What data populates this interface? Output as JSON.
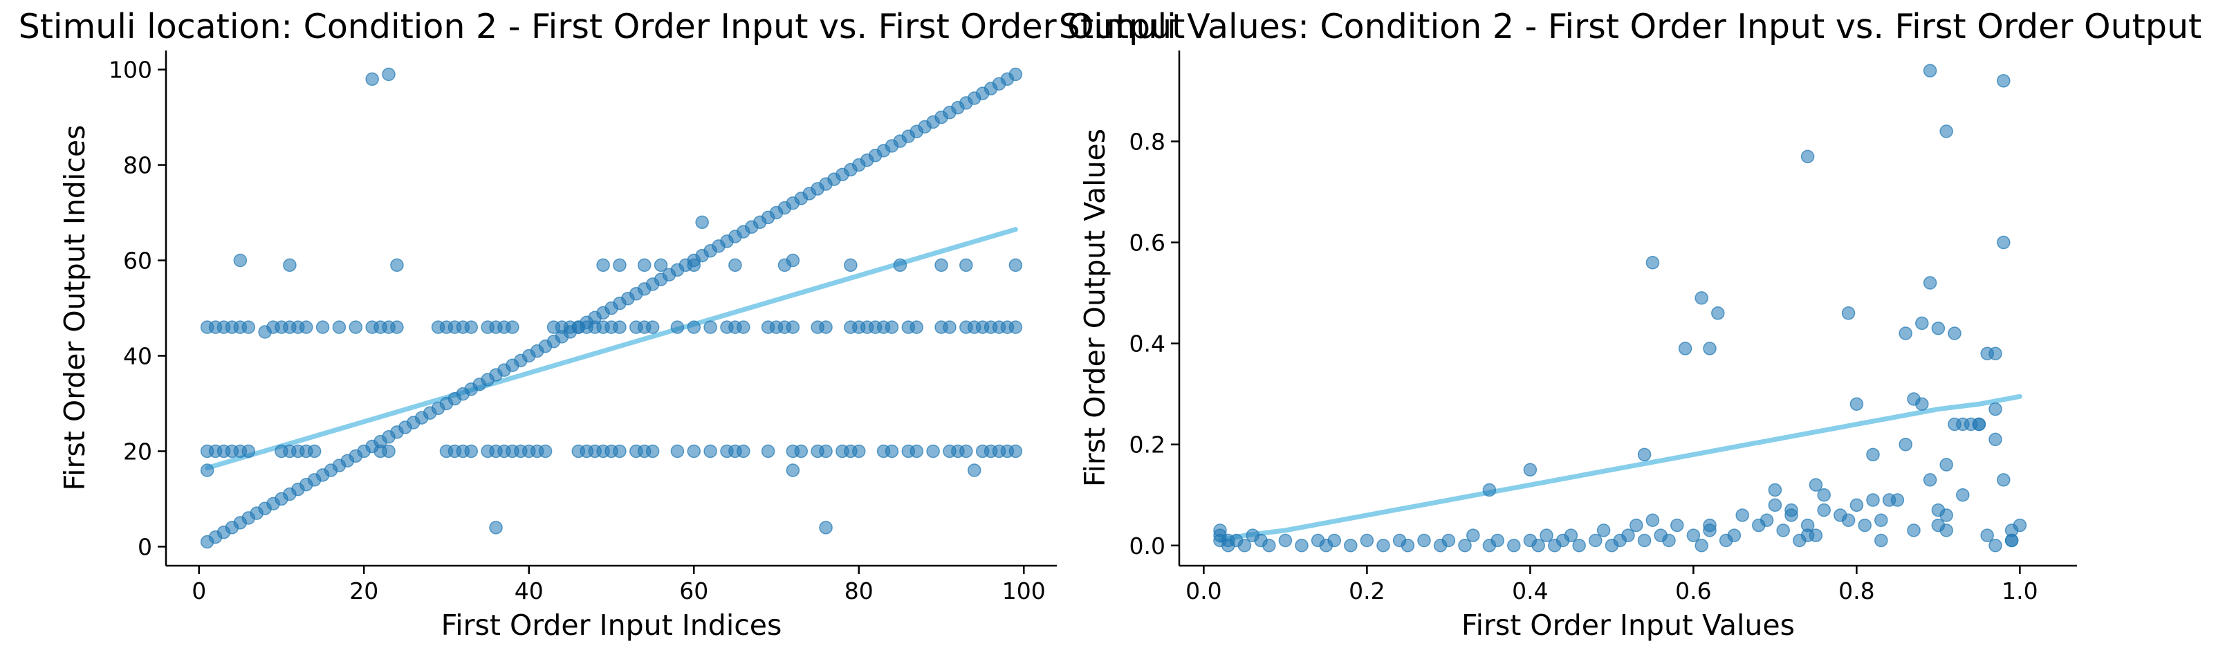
{
  "colors": {
    "points": "#1f77b4",
    "fit": "#87ceeb",
    "axis": "#000000"
  },
  "chart_data": [
    {
      "type": "scatter",
      "title": "Stimuli location: Condition 2 - First Order Input vs. First Order Output",
      "xlabel": "First Order Input Indices",
      "ylabel": "First Order Output Indices",
      "xlim": [
        -4,
        104
      ],
      "ylim": [
        -4,
        104
      ],
      "xticks": [
        0,
        20,
        40,
        60,
        80,
        100
      ],
      "yticks": [
        0,
        20,
        40,
        60,
        80,
        100
      ],
      "grid": false,
      "series": [
        {
          "kind": "points",
          "x": [
            1,
            2,
            3,
            4,
            5,
            6,
            7,
            8,
            9,
            10,
            11,
            12,
            13,
            14,
            15,
            16,
            17,
            18,
            19,
            20,
            21,
            22,
            23,
            24,
            25,
            26,
            27,
            28,
            29,
            30,
            31,
            32,
            33,
            34,
            35,
            36,
            37,
            38,
            39,
            40,
            41,
            42,
            43,
            44,
            45,
            46,
            47,
            48,
            49,
            50,
            51,
            52,
            53,
            54,
            55,
            56,
            57,
            58,
            59,
            60,
            61,
            62,
            63,
            64,
            65,
            66,
            67,
            68,
            69,
            70,
            71,
            72,
            73,
            74,
            75,
            76,
            77,
            78,
            79,
            80,
            81,
            82,
            83,
            84,
            85,
            86,
            87,
            88,
            89,
            90,
            91,
            92,
            93,
            94,
            95,
            96,
            97,
            98,
            99,
            1,
            2,
            3,
            4,
            5,
            6,
            8,
            9,
            10,
            11,
            12,
            13,
            15,
            17,
            19,
            21,
            22,
            23,
            24,
            29,
            30,
            31,
            32,
            33,
            35,
            36,
            37,
            38,
            43,
            44,
            45,
            46,
            47,
            48,
            49,
            50,
            51,
            53,
            54,
            55,
            58,
            60,
            62,
            64,
            65,
            66,
            69,
            70,
            71,
            72,
            75,
            76,
            79,
            80,
            81,
            82,
            83,
            84,
            86,
            87,
            90,
            91,
            93,
            94,
            95,
            96,
            97,
            98,
            99,
            1,
            2,
            3,
            4,
            5,
            6,
            10,
            11,
            12,
            13,
            14,
            22,
            23,
            30,
            31,
            32,
            33,
            35,
            36,
            37,
            38,
            39,
            40,
            41,
            42,
            46,
            47,
            48,
            49,
            50,
            51,
            53,
            54,
            55,
            58,
            60,
            62,
            64,
            65,
            66,
            69,
            72,
            73,
            75,
            76,
            78,
            79,
            80,
            83,
            84,
            86,
            87,
            89,
            91,
            92,
            93,
            95,
            96,
            97,
            98,
            99,
            5,
            11,
            24,
            49,
            51,
            54,
            56,
            60,
            65,
            71,
            72,
            79,
            85,
            90,
            93,
            99,
            21,
            23,
            1,
            36,
            61,
            72,
            76,
            94
          ],
          "y": [
            1,
            2,
            3,
            4,
            5,
            6,
            7,
            8,
            9,
            10,
            11,
            12,
            13,
            14,
            15,
            16,
            17,
            18,
            19,
            20,
            21,
            22,
            23,
            24,
            25,
            26,
            27,
            28,
            29,
            30,
            31,
            32,
            33,
            34,
            35,
            36,
            37,
            38,
            39,
            40,
            41,
            42,
            43,
            44,
            45,
            46,
            47,
            48,
            49,
            50,
            51,
            52,
            53,
            54,
            55,
            56,
            57,
            58,
            59,
            60,
            61,
            62,
            63,
            64,
            65,
            66,
            67,
            68,
            69,
            70,
            71,
            72,
            73,
            74,
            75,
            76,
            77,
            78,
            79,
            80,
            81,
            82,
            83,
            84,
            85,
            86,
            87,
            88,
            89,
            90,
            91,
            92,
            93,
            94,
            95,
            96,
            97,
            98,
            99,
            46,
            46,
            46,
            46,
            46,
            46,
            45,
            46,
            46,
            46,
            46,
            46,
            46,
            46,
            46,
            46,
            46,
            46,
            46,
            46,
            46,
            46,
            46,
            46,
            46,
            46,
            46,
            46,
            46,
            46,
            46,
            46,
            46,
            46,
            46,
            46,
            46,
            46,
            46,
            46,
            46,
            46,
            46,
            46,
            46,
            46,
            46,
            46,
            46,
            46,
            46,
            46,
            46,
            46,
            46,
            46,
            46,
            46,
            46,
            46,
            46,
            46,
            46,
            46,
            46,
            46,
            46,
            46,
            46,
            20,
            20,
            20,
            20,
            20,
            20,
            20,
            20,
            20,
            20,
            20,
            20,
            20,
            20,
            20,
            20,
            20,
            20,
            20,
            20,
            20,
            20,
            20,
            20,
            20,
            20,
            20,
            20,
            20,
            20,
            20,
            20,
            20,
            20,
            20,
            20,
            20,
            20,
            20,
            20,
            20,
            20,
            20,
            20,
            20,
            20,
            20,
            20,
            20,
            20,
            20,
            20,
            20,
            20,
            20,
            20,
            20,
            20,
            20,
            20,
            20,
            60,
            59,
            59,
            59,
            59,
            59,
            59,
            59,
            59,
            59,
            60,
            59,
            59,
            59,
            59,
            59,
            98,
            99,
            16,
            4,
            68,
            16,
            4,
            16
          ]
        },
        {
          "kind": "fit-line",
          "x": [
            1,
            99
          ],
          "y": [
            16.5,
            66.5
          ]
        }
      ]
    },
    {
      "type": "scatter",
      "title": "Stimuli Values: Condition 2 - First Order Input vs. First Order Output",
      "xlabel": "First Order Input Values",
      "ylabel": "First Order Output Values",
      "xlim": [
        -0.03,
        1.07
      ],
      "ylim": [
        -0.04,
        0.98
      ],
      "xticks": [
        0.0,
        0.2,
        0.4,
        0.6,
        0.8,
        1.0
      ],
      "yticks": [
        0.0,
        0.2,
        0.4,
        0.6,
        0.8
      ],
      "grid": false,
      "series": [
        {
          "kind": "points",
          "x": [
            0.02,
            0.02,
            0.02,
            0.03,
            0.03,
            0.04,
            0.05,
            0.06,
            0.07,
            0.08,
            0.1,
            0.12,
            0.14,
            0.15,
            0.16,
            0.18,
            0.2,
            0.22,
            0.24,
            0.25,
            0.27,
            0.29,
            0.3,
            0.32,
            0.33,
            0.35,
            0.36,
            0.38,
            0.4,
            0.41,
            0.42,
            0.43,
            0.44,
            0.45,
            0.46,
            0.48,
            0.49,
            0.5,
            0.51,
            0.52,
            0.53,
            0.54,
            0.55,
            0.56,
            0.57,
            0.58,
            0.6,
            0.61,
            0.62,
            0.64,
            0.65,
            0.66,
            0.68,
            0.69,
            0.7,
            0.71,
            0.72,
            0.73,
            0.74,
            0.75,
            0.76,
            0.78,
            0.79,
            0.8,
            0.81,
            0.82,
            0.83,
            0.84,
            0.86,
            0.87,
            0.88,
            0.89,
            0.9,
            0.91,
            0.92,
            0.93,
            0.95,
            0.96,
            0.97,
            0.98,
            0.99,
            1.0,
            0.35,
            0.4,
            0.54,
            0.55,
            0.59,
            0.61,
            0.62,
            0.63,
            0.74,
            0.79,
            0.8,
            0.86,
            0.87,
            0.88,
            0.89,
            0.9,
            0.91,
            0.92,
            0.95,
            0.97,
            0.98,
            0.99,
            0.62,
            0.7,
            0.72,
            0.74,
            0.75,
            0.76,
            0.82,
            0.83,
            0.85,
            0.9,
            0.91,
            0.93,
            0.94,
            0.96,
            0.97,
            0.99,
            0.98,
            0.89,
            0.91,
            0.97
          ],
          "y": [
            0.01,
            0.02,
            0.03,
            0.01,
            0.0,
            0.01,
            0.0,
            0.02,
            0.01,
            0.0,
            0.01,
            0.0,
            0.01,
            0.0,
            0.01,
            0.0,
            0.01,
            0.0,
            0.01,
            0.0,
            0.01,
            0.0,
            0.01,
            0.0,
            0.02,
            0.0,
            0.01,
            0.0,
            0.01,
            0.0,
            0.02,
            0.0,
            0.01,
            0.02,
            0.0,
            0.01,
            0.03,
            0.0,
            0.01,
            0.02,
            0.04,
            0.01,
            0.05,
            0.02,
            0.01,
            0.04,
            0.02,
            0.0,
            0.03,
            0.01,
            0.02,
            0.06,
            0.04,
            0.05,
            0.08,
            0.03,
            0.06,
            0.01,
            0.04,
            0.02,
            0.1,
            0.06,
            0.05,
            0.08,
            0.04,
            0.09,
            0.01,
            0.09,
            0.2,
            0.03,
            0.28,
            0.13,
            0.07,
            0.16,
            0.24,
            0.1,
            0.24,
            0.02,
            0.21,
            0.13,
            0.01,
            0.04,
            0.11,
            0.15,
            0.18,
            0.56,
            0.39,
            0.49,
            0.39,
            0.46,
            0.77,
            0.46,
            0.28,
            0.42,
            0.29,
            0.44,
            0.52,
            0.43,
            0.82,
            0.42,
            0.24,
            0.38,
            0.6,
            0.03,
            0.04,
            0.11,
            0.07,
            0.02,
            0.12,
            0.07,
            0.18,
            0.05,
            0.09,
            0.04,
            0.06,
            0.24,
            0.24,
            0.38,
            0.27,
            0.01,
            0.92,
            0.94,
            0.03,
            0.0
          ]
        },
        {
          "kind": "fit-curve",
          "x": [
            0.02,
            0.05,
            0.1,
            0.15,
            0.2,
            0.25,
            0.3,
            0.35,
            0.4,
            0.45,
            0.5,
            0.55,
            0.6,
            0.65,
            0.7,
            0.75,
            0.8,
            0.85,
            0.9,
            0.95,
            1.0
          ],
          "y": [
            0.01,
            0.02,
            0.03,
            0.045,
            0.06,
            0.075,
            0.09,
            0.105,
            0.12,
            0.135,
            0.15,
            0.165,
            0.18,
            0.195,
            0.21,
            0.225,
            0.24,
            0.255,
            0.27,
            0.28,
            0.295
          ]
        }
      ]
    }
  ]
}
